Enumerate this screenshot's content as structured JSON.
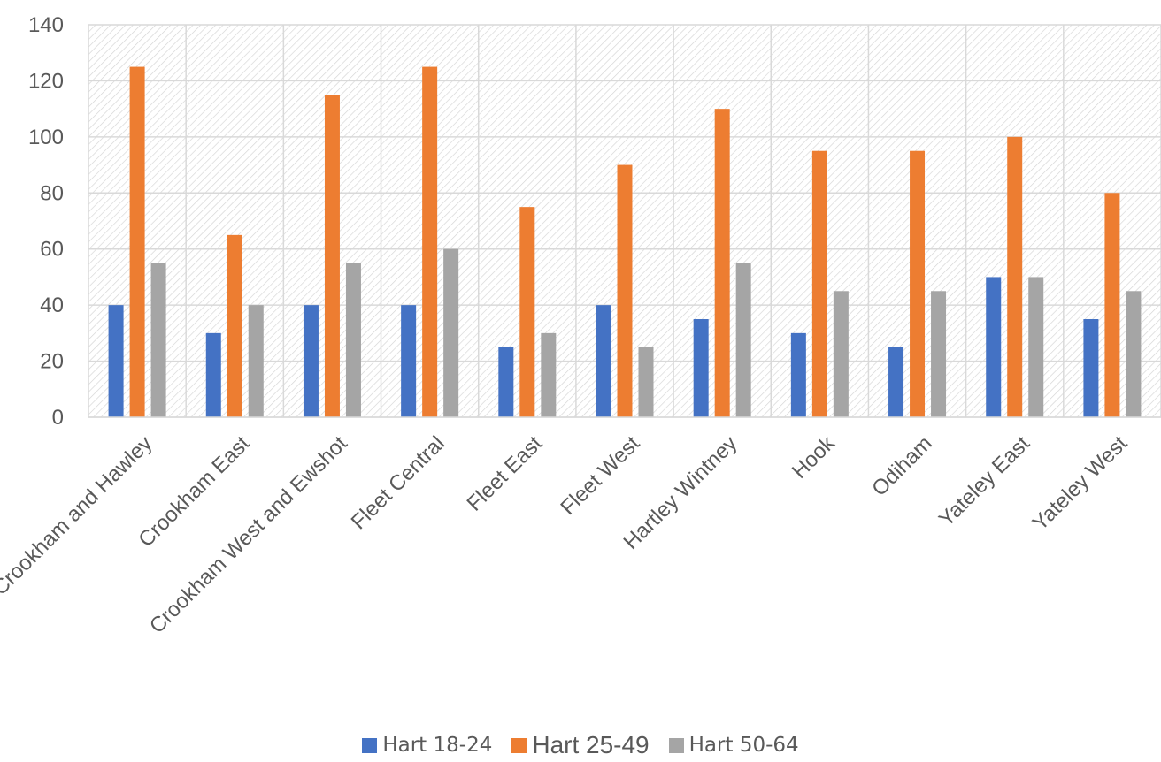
{
  "chart_data": {
    "type": "bar",
    "categories": [
      "Church Crookham and Hawley",
      "Crookham East",
      "Crookham West and Ewshot",
      "Fleet Central",
      "Fleet East",
      "Fleet West",
      "Hartley Wintney",
      "Hook",
      "Odiham",
      "Yateley East",
      "Yateley West"
    ],
    "series": [
      {
        "name": "Hart 18-24",
        "color": "#4472C4",
        "values": [
          40,
          30,
          40,
          40,
          25,
          40,
          35,
          30,
          25,
          50,
          35
        ]
      },
      {
        "name": "Hart 25-49",
        "color": "#ED7D31",
        "values": [
          125,
          65,
          115,
          125,
          75,
          90,
          110,
          95,
          95,
          100,
          80
        ]
      },
      {
        "name": "Hart 50-64",
        "color": "#A5A5A5",
        "values": [
          55,
          40,
          55,
          60,
          30,
          25,
          55,
          45,
          45,
          50,
          45
        ]
      }
    ],
    "ylim": [
      0,
      140
    ],
    "yticks": [
      0,
      20,
      40,
      60,
      80,
      100,
      120,
      140
    ],
    "grid": true,
    "legend": "bottom",
    "title": "",
    "xlabel": "",
    "ylabel": ""
  }
}
